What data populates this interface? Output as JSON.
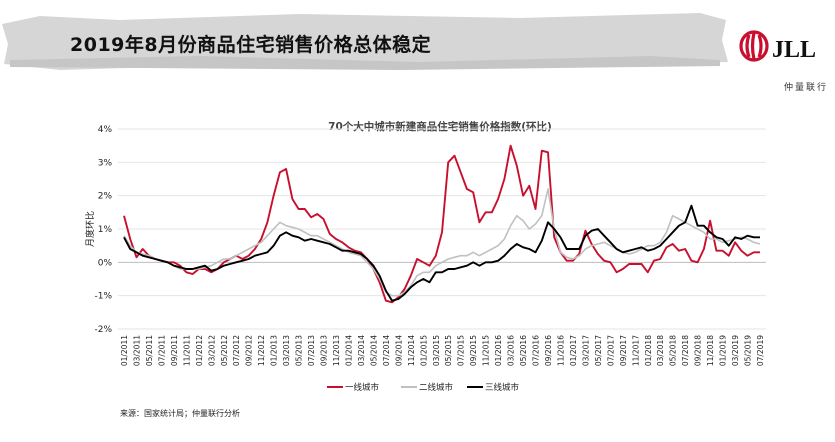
{
  "header": {
    "title": "2019年8月份商品住宅销售价格总体稳定"
  },
  "brand": {
    "logo_text": "JLL",
    "sub_text": "仲量联行",
    "red": "#c8102e"
  },
  "source": "来源：国家统计局；仲量联行分析",
  "chart_data": {
    "type": "line",
    "title": "70个大中城市新建商品住宅销售价格指数(环比)",
    "ylabel": "月度环比",
    "ylim": [
      -2,
      4
    ],
    "yticks": [
      "-2%",
      "-1%",
      "0%",
      "1%",
      "2%",
      "3%",
      "4%"
    ],
    "grid": "horizontal",
    "legend": "bottom",
    "x_labels": [
      "01/2011",
      "03/2011",
      "05/2011",
      "07/2011",
      "09/2011",
      "11/2011",
      "01/2012",
      "03/2012",
      "05/2012",
      "07/2012",
      "09/2012",
      "11/2012",
      "01/2013",
      "03/2013",
      "05/2013",
      "07/2013",
      "09/2013",
      "11/2013",
      "01/2014",
      "03/2014",
      "05/2014",
      "07/2014",
      "09/2014",
      "11/2014",
      "01/2015",
      "03/2015",
      "05/2015",
      "07/2015",
      "09/2015",
      "11/2015",
      "01/2016",
      "03/2016",
      "05/2016",
      "07/2016",
      "09/2016",
      "11/2016",
      "01/2017",
      "03/2017",
      "05/2017",
      "07/2017",
      "09/2017",
      "11/2017",
      "01/2018",
      "03/2018",
      "05/2018",
      "07/2018",
      "09/2018",
      "11/2018",
      "01/2019",
      "03/2019",
      "05/2019",
      "07/2019"
    ],
    "series": [
      {
        "name": "一线城市",
        "color": "#c8102e",
        "values": [
          1.4,
          0.7,
          0.15,
          0.4,
          0.2,
          0.1,
          0.05,
          0.0,
          0.0,
          -0.1,
          -0.3,
          -0.35,
          -0.2,
          -0.2,
          -0.3,
          -0.2,
          0.0,
          0.1,
          0.2,
          0.1,
          0.2,
          0.4,
          0.7,
          1.2,
          2.0,
          2.7,
          2.8,
          1.9,
          1.6,
          1.6,
          1.35,
          1.45,
          1.3,
          0.85,
          0.7,
          0.6,
          0.45,
          0.35,
          0.3,
          0.1,
          -0.2,
          -0.6,
          -1.15,
          -1.2,
          -1.05,
          -0.8,
          -0.4,
          0.1,
          0.0,
          -0.1,
          0.2,
          0.9,
          3.0,
          3.2,
          2.7,
          2.2,
          2.1,
          1.2,
          1.5,
          1.5,
          1.9,
          2.5,
          3.5,
          2.9,
          2.0,
          2.3,
          1.6,
          3.35,
          3.3,
          0.75,
          0.3,
          0.05,
          0.05,
          0.25,
          0.95,
          0.55,
          0.25,
          0.05,
          0.0,
          -0.3,
          -0.2,
          -0.05,
          -0.05,
          -0.05,
          -0.3,
          0.05,
          0.1,
          0.45,
          0.55,
          0.35,
          0.4,
          0.05,
          0.0,
          0.4,
          1.25,
          0.35,
          0.35,
          0.2,
          0.6,
          0.35,
          0.2,
          0.3,
          0.3
        ]
      },
      {
        "name": "二线城市",
        "color": "#c0c0c0",
        "values": [
          0.8,
          0.5,
          0.3,
          0.25,
          0.2,
          0.1,
          0.05,
          0.0,
          -0.1,
          -0.2,
          -0.2,
          -0.2,
          -0.2,
          -0.15,
          -0.1,
          0.0,
          0.1,
          0.1,
          0.2,
          0.3,
          0.4,
          0.5,
          0.6,
          0.8,
          1.0,
          1.2,
          1.1,
          1.05,
          1.0,
          0.9,
          0.8,
          0.8,
          0.7,
          0.6,
          0.5,
          0.4,
          0.3,
          0.25,
          0.2,
          0.0,
          -0.2,
          -0.5,
          -0.9,
          -1.0,
          -1.0,
          -0.9,
          -0.7,
          -0.4,
          -0.3,
          -0.3,
          -0.1,
          0.0,
          0.1,
          0.15,
          0.2,
          0.2,
          0.3,
          0.2,
          0.3,
          0.4,
          0.5,
          0.7,
          1.1,
          1.4,
          1.25,
          1.0,
          1.15,
          1.4,
          2.2,
          1.0,
          0.3,
          0.15,
          0.1,
          0.2,
          0.4,
          0.5,
          0.55,
          0.6,
          0.5,
          0.4,
          0.3,
          0.25,
          0.3,
          0.4,
          0.5,
          0.5,
          0.6,
          0.9,
          1.4,
          1.3,
          1.2,
          1.1,
          1.0,
          0.9,
          0.7,
          0.7,
          0.6,
          0.65,
          0.7,
          0.75,
          0.7,
          0.6,
          0.55
        ]
      },
      {
        "name": "三线城市",
        "color": "#000000",
        "values": [
          0.75,
          0.4,
          0.3,
          0.2,
          0.15,
          0.1,
          0.05,
          0.0,
          -0.1,
          -0.15,
          -0.2,
          -0.2,
          -0.15,
          -0.1,
          -0.25,
          -0.2,
          -0.1,
          -0.05,
          0.0,
          0.05,
          0.1,
          0.2,
          0.25,
          0.3,
          0.5,
          0.8,
          0.9,
          0.8,
          0.75,
          0.65,
          0.7,
          0.65,
          0.6,
          0.55,
          0.45,
          0.35,
          0.35,
          0.3,
          0.25,
          0.1,
          -0.1,
          -0.4,
          -0.85,
          -1.15,
          -1.1,
          -0.95,
          -0.75,
          -0.6,
          -0.5,
          -0.6,
          -0.3,
          -0.3,
          -0.2,
          -0.2,
          -0.15,
          -0.1,
          0.0,
          -0.1,
          0.0,
          0.0,
          0.05,
          0.2,
          0.4,
          0.55,
          0.45,
          0.4,
          0.3,
          0.65,
          1.2,
          1.0,
          0.75,
          0.4,
          0.4,
          0.4,
          0.8,
          0.95,
          1.0,
          0.8,
          0.6,
          0.4,
          0.3,
          0.35,
          0.4,
          0.45,
          0.35,
          0.4,
          0.5,
          0.7,
          0.9,
          1.1,
          1.2,
          1.7,
          1.1,
          1.1,
          0.9,
          0.75,
          0.7,
          0.5,
          0.75,
          0.7,
          0.8,
          0.75,
          0.75
        ]
      }
    ]
  }
}
